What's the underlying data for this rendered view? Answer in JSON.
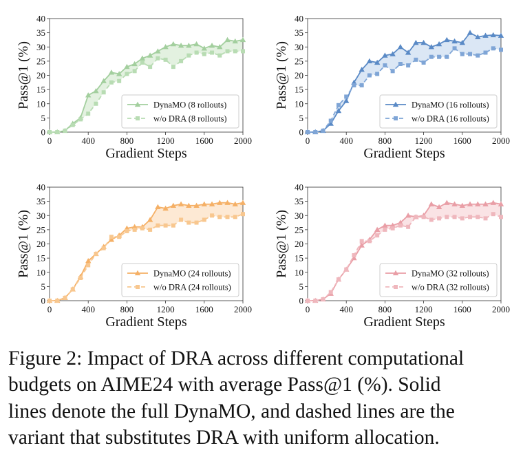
{
  "chart_data": [
    {
      "type": "line",
      "xlabel": "Gradient Steps",
      "ylabel": "Pass@1 (%)",
      "x": [
        0,
        80,
        160,
        240,
        320,
        400,
        480,
        560,
        640,
        720,
        800,
        880,
        960,
        1040,
        1120,
        1200,
        1280,
        1360,
        1440,
        1520,
        1600,
        1680,
        1760,
        1840,
        1920,
        2000
      ],
      "xlim": [
        0,
        2000
      ],
      "xticks": [
        0,
        400,
        800,
        1200,
        1600,
        2000
      ],
      "ylim": [
        0,
        40
      ],
      "yticks": [
        0,
        5,
        10,
        15,
        20,
        25,
        30,
        35,
        40
      ],
      "legend": "lower right",
      "fill_between": true,
      "fill_color": "#e3f1e0",
      "series": [
        {
          "name": "DynaMO (8 rollouts)",
          "color": "#a3cf9e",
          "style": "solid",
          "marker": "triangle",
          "values": [
            0,
            0,
            0.5,
            3,
            5,
            13,
            14.5,
            18,
            21,
            20.5,
            23,
            24,
            26,
            27,
            28.5,
            30,
            31,
            30.5,
            30.5,
            31,
            29.5,
            30.5,
            30,
            32.5,
            32,
            32.5
          ]
        },
        {
          "name": "w/o DRA (8 rollouts)",
          "color": "#b8dcb3",
          "style": "dashed",
          "marker": "square",
          "values": [
            0,
            0,
            0.5,
            2.5,
            4.5,
            6.5,
            10,
            14,
            17.5,
            18,
            20.5,
            21.5,
            24.5,
            23,
            26,
            25.5,
            23,
            25,
            27,
            28,
            27.5,
            28,
            27,
            28.5,
            28.5,
            28.5
          ]
        }
      ]
    },
    {
      "type": "line",
      "xlabel": "Gradient Steps",
      "ylabel": "Pass@1 (%)",
      "x": [
        0,
        80,
        160,
        240,
        320,
        400,
        480,
        560,
        640,
        720,
        800,
        880,
        960,
        1040,
        1120,
        1200,
        1280,
        1360,
        1440,
        1520,
        1600,
        1680,
        1760,
        1840,
        1920,
        2000
      ],
      "xlim": [
        0,
        2000
      ],
      "xticks": [
        0,
        400,
        800,
        1200,
        1600,
        2000
      ],
      "ylim": [
        0,
        40
      ],
      "yticks": [
        0,
        5,
        10,
        15,
        20,
        25,
        30,
        35,
        40
      ],
      "legend": "lower right",
      "fill_between": true,
      "fill_color": "#dbe7f5",
      "series": [
        {
          "name": "DynaMO (16 rollouts)",
          "color": "#5a8ac6",
          "style": "solid",
          "marker": "triangle",
          "values": [
            0,
            0,
            0.5,
            3,
            7.5,
            11,
            17.5,
            22,
            25,
            24.5,
            27,
            27.5,
            30,
            28,
            31.5,
            31.5,
            30,
            31,
            32.5,
            32,
            31.5,
            35,
            33.5,
            34,
            34.2,
            34
          ]
        },
        {
          "name": "w/o DRA (16 rollouts)",
          "color": "#7fa5d6",
          "style": "dashed",
          "marker": "square",
          "values": [
            0,
            0,
            0.5,
            4,
            9.5,
            12.5,
            16.5,
            16.5,
            20,
            20.5,
            23.5,
            21.5,
            24,
            23.5,
            25.5,
            24.5,
            26.5,
            26.5,
            26.5,
            29.5,
            27.5,
            27.5,
            27,
            28,
            29.5,
            29
          ]
        }
      ]
    },
    {
      "type": "line",
      "xlabel": "Gradient Steps",
      "ylabel": "Pass@1 (%)",
      "x": [
        0,
        80,
        160,
        240,
        320,
        400,
        480,
        560,
        640,
        720,
        800,
        880,
        960,
        1040,
        1120,
        1200,
        1280,
        1360,
        1440,
        1520,
        1600,
        1680,
        1760,
        1840,
        1920,
        2000
      ],
      "xlim": [
        0,
        2000
      ],
      "xticks": [
        0,
        400,
        800,
        1200,
        1600,
        2000
      ],
      "ylim": [
        0,
        40
      ],
      "yticks": [
        0,
        5,
        10,
        15,
        20,
        25,
        30,
        35,
        40
      ],
      "legend": "lower right",
      "fill_between": true,
      "fill_color": "#fde9d4",
      "series": [
        {
          "name": "DynaMO (24 rollouts)",
          "color": "#f5b066",
          "style": "solid",
          "marker": "triangle",
          "values": [
            0,
            0,
            1,
            4,
            8.5,
            14,
            16.5,
            19,
            21.5,
            23,
            25.5,
            26,
            26,
            28.5,
            33,
            32.5,
            33.5,
            34,
            33.5,
            33.5,
            34,
            34,
            34.5,
            34.5,
            34,
            34.5
          ]
        },
        {
          "name": "w/o DRA (24 rollouts)",
          "color": "#f8c78f",
          "style": "dashed",
          "marker": "square",
          "values": [
            0,
            0,
            1,
            4,
            8,
            12.5,
            16.5,
            18.5,
            22.5,
            22.5,
            24.5,
            25,
            25.5,
            25,
            26.5,
            26.5,
            26.5,
            28.5,
            27.5,
            27.5,
            28.5,
            30,
            29.5,
            29.5,
            29.5,
            30.5
          ]
        }
      ]
    },
    {
      "type": "line",
      "xlabel": "Gradient Steps",
      "ylabel": "Pass@1 (%)",
      "x": [
        0,
        80,
        160,
        240,
        320,
        400,
        480,
        560,
        640,
        720,
        800,
        880,
        960,
        1040,
        1120,
        1200,
        1280,
        1360,
        1440,
        1520,
        1600,
        1680,
        1760,
        1840,
        1920,
        2000
      ],
      "xlim": [
        0,
        2000
      ],
      "xticks": [
        0,
        400,
        800,
        1200,
        1600,
        2000
      ],
      "ylim": [
        0,
        40
      ],
      "yticks": [
        0,
        5,
        10,
        15,
        20,
        25,
        30,
        35,
        40
      ],
      "legend": "lower right",
      "fill_between": true,
      "fill_color": "#fae3e5",
      "series": [
        {
          "name": "DynaMO (32 rollouts)",
          "color": "#e99ea6",
          "style": "solid",
          "marker": "triangle",
          "values": [
            0,
            0,
            0.5,
            2.5,
            7.5,
            11,
            15,
            19.5,
            21.5,
            25,
            26.5,
            26.5,
            27.5,
            30,
            29.5,
            30,
            34,
            33,
            34.5,
            34,
            33.5,
            34,
            34,
            34,
            34.5,
            34
          ]
        },
        {
          "name": "w/o DRA (32 rollouts)",
          "color": "#efb7bd",
          "style": "dashed",
          "marker": "square",
          "values": [
            0,
            0,
            0.5,
            3,
            7.5,
            11,
            16,
            21,
            21,
            23,
            25,
            25.5,
            26.5,
            26,
            29.5,
            29.5,
            28.5,
            29,
            29.5,
            29.5,
            29,
            29.5,
            29.5,
            29,
            30.5,
            29.5
          ]
        }
      ]
    }
  ],
  "caption": [
    "Figure 2: Impact of DRA across different computational",
    "budgets on AIME24 with average Pass@1 (%). Solid",
    "lines denote the full DynaMO, and dashed lines are the",
    "variant that substitutes DRA with uniform allocation."
  ]
}
